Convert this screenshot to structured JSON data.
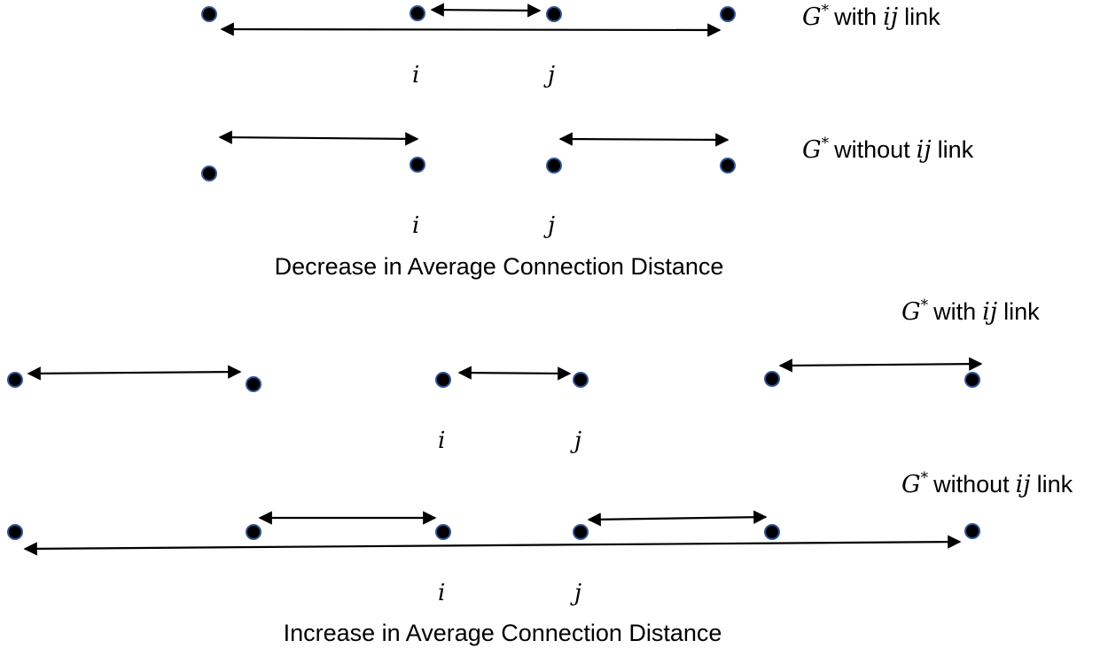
{
  "top_panel": {
    "with_label": {
      "symbol": "G",
      "sup": "*",
      "pre": "with",
      "pair": "ij",
      "post": "link"
    },
    "without_label": {
      "symbol": "G",
      "sup": "*",
      "pre": "without",
      "pair": "ij",
      "post": "link"
    },
    "node_i": "i",
    "node_j": "j",
    "caption": "Decrease in Average Connection Distance"
  },
  "bottom_panel": {
    "with_label": {
      "symbol": "G",
      "sup": "*",
      "pre": "with",
      "pair": "ij",
      "post": "link"
    },
    "without_label": {
      "symbol": "G",
      "sup": "*",
      "pre": "without",
      "pair": "ij",
      "post": "link"
    },
    "node_i": "i",
    "node_j": "j",
    "caption": "Increase in Average Connection Distance"
  },
  "colors": {
    "node_fill": "#000000",
    "node_outline": "#2F5597",
    "arrow": "#000000"
  }
}
